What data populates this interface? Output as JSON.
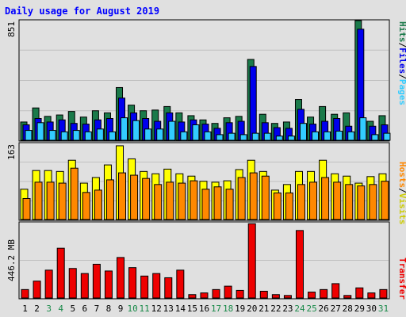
{
  "title": "Daily usage for August 2019",
  "colors": {
    "hits": "#1a7a4a",
    "files": "#0000ee",
    "pages": "#33ccff",
    "visits": "#ffff00",
    "sites": "#ff8800",
    "kbytes": "#ee0000"
  },
  "chart_data": [
    {
      "type": "bar",
      "title": "Daily usage for August 2019",
      "ylabel_right": [
        "Hits",
        "Files",
        "Pages"
      ],
      "ymax_label": "851",
      "ylim": [
        0,
        851
      ],
      "categories": [
        "1",
        "2",
        "3",
        "4",
        "5",
        "6",
        "7",
        "8",
        "9",
        "10",
        "11",
        "12",
        "13",
        "14",
        "15",
        "16",
        "17",
        "18",
        "19",
        "20",
        "21",
        "22",
        "23",
        "24",
        "25",
        "26",
        "27",
        "28",
        "29",
        "30",
        "31"
      ],
      "series": [
        {
          "name": "Hits",
          "values": [
            130,
            230,
            170,
            180,
            205,
            165,
            210,
            195,
            375,
            250,
            210,
            215,
            240,
            195,
            175,
            145,
            120,
            160,
            170,
            575,
            185,
            120,
            130,
            290,
            165,
            240,
            185,
            195,
            851,
            135,
            175
          ]
        },
        {
          "name": "Files",
          "values": [
            110,
            155,
            130,
            145,
            120,
            115,
            145,
            155,
            300,
            195,
            155,
            135,
            195,
            130,
            145,
            115,
            85,
            125,
            135,
            525,
            125,
            90,
            85,
            220,
            115,
            135,
            155,
            100,
            790,
            100,
            110
          ]
        },
        {
          "name": "Pages",
          "values": [
            70,
            125,
            70,
            60,
            70,
            60,
            80,
            60,
            160,
            140,
            80,
            80,
            135,
            60,
            110,
            60,
            40,
            50,
            40,
            50,
            50,
            30,
            30,
            120,
            60,
            60,
            65,
            60,
            160,
            40,
            50
          ]
        }
      ]
    },
    {
      "type": "bar",
      "ylabel_right": [
        "Hosts",
        "Visits"
      ],
      "ymax_label": "163",
      "ylim": [
        0,
        163
      ],
      "categories": [
        "1",
        "2",
        "3",
        "4",
        "5",
        "6",
        "7",
        "8",
        "9",
        "10",
        "11",
        "12",
        "13",
        "14",
        "15",
        "16",
        "17",
        "18",
        "19",
        "20",
        "21",
        "22",
        "23",
        "24",
        "25",
        "26",
        "27",
        "28",
        "29",
        "30",
        "31"
      ],
      "series": [
        {
          "name": "Visits",
          "values": [
            65,
            105,
            105,
            103,
            127,
            78,
            90,
            117,
            158,
            130,
            103,
            98,
            108,
            98,
            93,
            82,
            80,
            83,
            107,
            127,
            103,
            63,
            75,
            103,
            103,
            127,
            98,
            93,
            78,
            92,
            98
          ]
        },
        {
          "name": "Hosts",
          "values": [
            45,
            80,
            80,
            78,
            110,
            58,
            63,
            85,
            100,
            95,
            88,
            75,
            80,
            78,
            83,
            65,
            70,
            65,
            90,
            100,
            93,
            57,
            57,
            75,
            80,
            90,
            80,
            75,
            72,
            75,
            82
          ]
        }
      ]
    },
    {
      "type": "bar",
      "ylabel_left": "446.2 MB",
      "ylabel_right": [
        "Transfer"
      ],
      "ylim": [
        0,
        892.4
      ],
      "categories": [
        "1",
        "2",
        "3",
        "4",
        "5",
        "6",
        "7",
        "8",
        "9",
        "10",
        "11",
        "12",
        "13",
        "14",
        "15",
        "16",
        "17",
        "18",
        "19",
        "20",
        "21",
        "22",
        "23",
        "24",
        "25",
        "26",
        "27",
        "28",
        "29",
        "30",
        "31"
      ],
      "series": [
        {
          "name": "Transfer",
          "unit": "MB",
          "values": [
            100,
            200,
            330,
            590,
            350,
            290,
            400,
            320,
            480,
            360,
            260,
            290,
            240,
            330,
            40,
            60,
            100,
            140,
            90,
            880,
            80,
            40,
            30,
            800,
            70,
            100,
            170,
            30,
            120,
            60,
            100
          ]
        }
      ]
    }
  ],
  "weekend_days": [
    3,
    4,
    10,
    11,
    17,
    18,
    24,
    25,
    31
  ]
}
